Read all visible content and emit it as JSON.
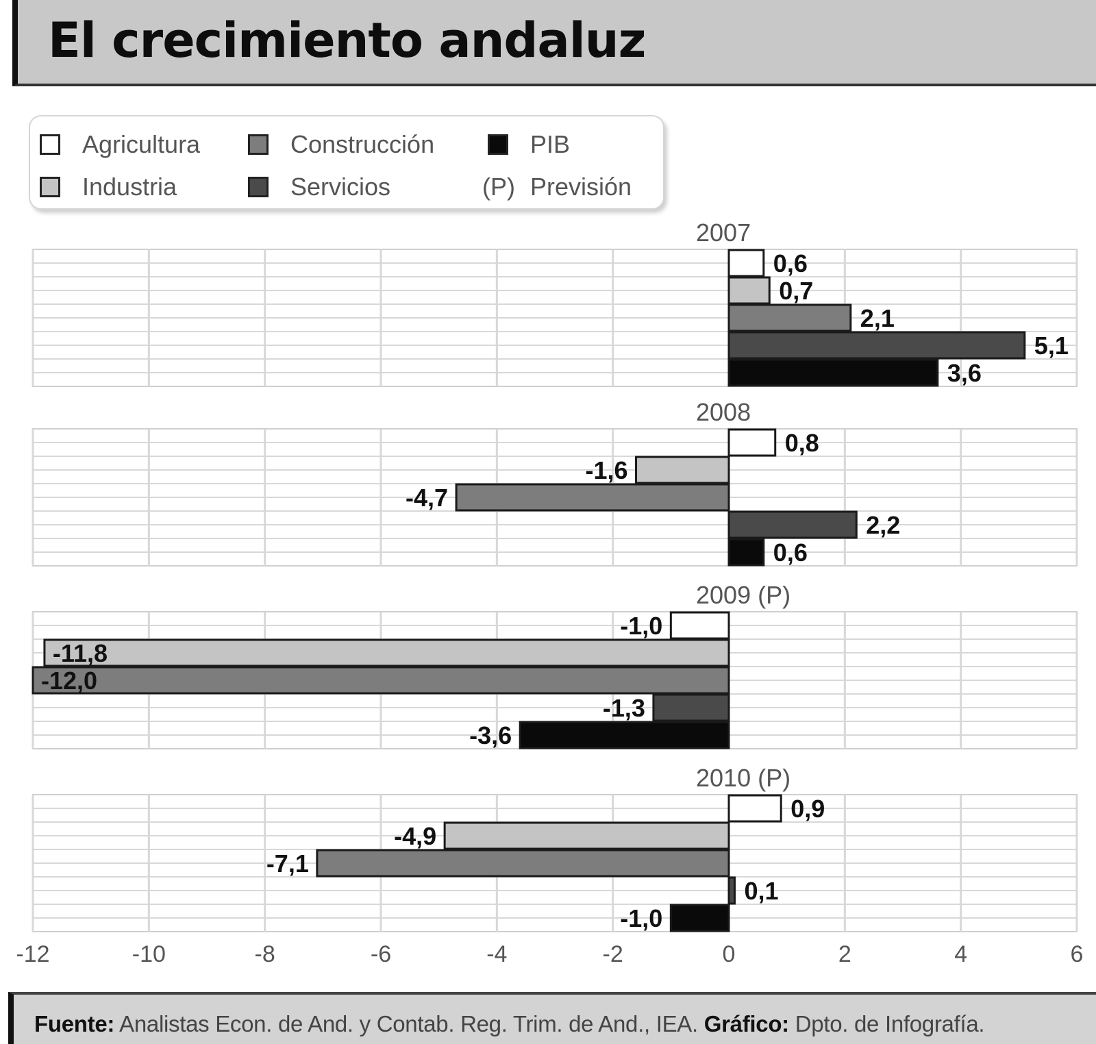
{
  "title": "El crecimiento andaluz",
  "legend": {
    "items": [
      {
        "label": "Agricultura",
        "color": "#ffffff"
      },
      {
        "label": "Construcción",
        "color": "#7d7d7d"
      },
      {
        "label": "PIB",
        "color": "#0a0a0a"
      },
      {
        "label": "Industria",
        "color": "#c4c4c4"
      },
      {
        "label": "Servicios",
        "color": "#4a4a4a"
      }
    ],
    "note_prefix": "(P)",
    "note_label": "Previsión"
  },
  "footer": {
    "source_label": "Fuente:",
    "source_text": "Analistas Econ. de And. y Contab. Reg. Trim. de And., IEA.",
    "graphic_label": "Gráfico:",
    "graphic_text": "Dpto. de Infografía."
  },
  "chart_data": {
    "type": "bar",
    "orientation": "horizontal",
    "categories": [
      "Agricultura",
      "Industria",
      "Construcción",
      "Servicios",
      "PIB"
    ],
    "groups": [
      {
        "label": "2007",
        "values": [
          0.6,
          0.7,
          2.1,
          5.1,
          3.6
        ],
        "value_labels": [
          "0,6",
          "0,7",
          "2,1",
          "5,1",
          "3,6"
        ]
      },
      {
        "label": "2008",
        "values": [
          0.8,
          -1.6,
          -4.7,
          2.2,
          0.6
        ],
        "value_labels": [
          "0,8",
          "-1,6",
          "-4,7",
          "2,2",
          "0,6"
        ]
      },
      {
        "label": "2009 (P)",
        "values": [
          -1.0,
          -11.8,
          -12.0,
          -1.3,
          -3.6
        ],
        "value_labels": [
          "-1,0",
          "-11,8",
          "-12,0",
          "-1,3",
          "-3,6"
        ]
      },
      {
        "label": "2010 (P)",
        "values": [
          0.9,
          -4.9,
          -7.1,
          0.1,
          -1.0
        ],
        "value_labels": [
          "0,9",
          "-4,9",
          "-7,1",
          "0,1",
          "-1,0"
        ]
      }
    ],
    "colors": [
      "#ffffff",
      "#c4c4c4",
      "#7d7d7d",
      "#4a4a4a",
      "#0a0a0a"
    ],
    "xlim": [
      -12,
      6
    ],
    "xticks": [
      -12,
      -10,
      -8,
      -6,
      -4,
      -2,
      0,
      2,
      4,
      6
    ],
    "xtick_labels": [
      "-12",
      "-10",
      "-8",
      "-6",
      "-4",
      "-2",
      "0",
      "2",
      "4",
      "6"
    ],
    "grid": true
  }
}
